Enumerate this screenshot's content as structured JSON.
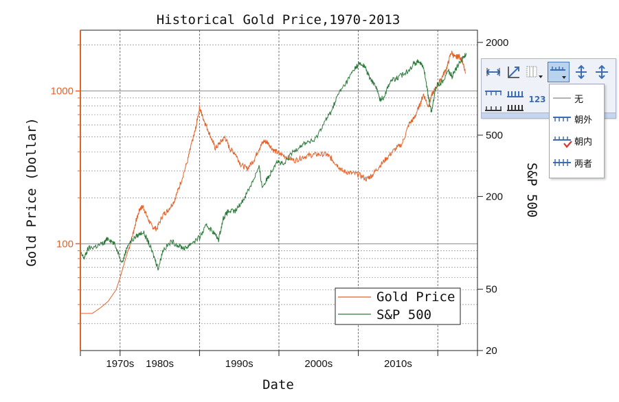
{
  "chart_data": {
    "type": "line",
    "title": "Historical Gold Price,1970-2013",
    "xlabel": "Date",
    "ylabel_left": "Gold Price (Dollar)",
    "ylabel_right": "S&P 500",
    "x_range": [
      1965.0,
      2015.0
    ],
    "x_tick_labels": [
      "1970s",
      "1980s",
      "1990s",
      "2000s",
      "2010s"
    ],
    "y_left": {
      "scale": "log",
      "range": [
        20,
        2500
      ],
      "tick_labels": [
        "100",
        "1000"
      ],
      "tick_values": [
        100,
        1000
      ]
    },
    "y_right": {
      "scale": "log",
      "range": [
        20,
        2400
      ],
      "tick_labels": [
        "20",
        "50",
        "200",
        "500",
        "2000"
      ],
      "tick_values": [
        20,
        50,
        200,
        500,
        2000
      ]
    },
    "grid": true,
    "legend_position": "bottom-right",
    "series": [
      {
        "name": "Gold Price",
        "color": "#e2622a",
        "axis": "left",
        "points": [
          [
            1965.0,
            35
          ],
          [
            1966.5,
            35
          ],
          [
            1967.5,
            38
          ],
          [
            1968.5,
            42
          ],
          [
            1969.5,
            50
          ],
          [
            1970.0,
            60
          ],
          [
            1970.7,
            80
          ],
          [
            1971.5,
            110
          ],
          [
            1972.0,
            140
          ],
          [
            1972.5,
            170
          ],
          [
            1972.9,
            175
          ],
          [
            1973.4,
            150
          ],
          [
            1974.0,
            130
          ],
          [
            1974.6,
            125
          ],
          [
            1975.4,
            155
          ],
          [
            1976.0,
            165
          ],
          [
            1976.8,
            190
          ],
          [
            1977.5,
            240
          ],
          [
            1978.5,
            350
          ],
          [
            1979.0,
            450
          ],
          [
            1979.5,
            560
          ],
          [
            1980.0,
            780
          ],
          [
            1980.3,
            700
          ],
          [
            1980.8,
            600
          ],
          [
            1981.5,
            490
          ],
          [
            1982.0,
            420
          ],
          [
            1982.6,
            460
          ],
          [
            1983.2,
            500
          ],
          [
            1983.8,
            420
          ],
          [
            1984.5,
            390
          ],
          [
            1985.2,
            330
          ],
          [
            1986.0,
            310
          ],
          [
            1986.8,
            350
          ],
          [
            1987.5,
            420
          ],
          [
            1988.1,
            470
          ],
          [
            1988.6,
            460
          ],
          [
            1989.3,
            410
          ],
          [
            1990.0,
            390
          ],
          [
            1991.0,
            370
          ],
          [
            1992.0,
            350
          ],
          [
            1993.0,
            370
          ],
          [
            1994.0,
            380
          ],
          [
            1995.0,
            385
          ],
          [
            1996.0,
            385
          ],
          [
            1996.6,
            360
          ],
          [
            1997.3,
            330
          ],
          [
            1998.0,
            300
          ],
          [
            1999.0,
            290
          ],
          [
            2000.0,
            285
          ],
          [
            2001.0,
            265
          ],
          [
            2001.7,
            280
          ],
          [
            2002.6,
            320
          ],
          [
            2003.5,
            360
          ],
          [
            2004.5,
            410
          ],
          [
            2005.5,
            450
          ],
          [
            2006.4,
            610
          ],
          [
            2007.0,
            660
          ],
          [
            2007.7,
            800
          ],
          [
            2008.2,
            950
          ],
          [
            2008.8,
            800
          ],
          [
            2009.3,
            950
          ],
          [
            2010.0,
            1100
          ],
          [
            2010.6,
            1250
          ],
          [
            2011.2,
            1450
          ],
          [
            2011.7,
            1800
          ],
          [
            2012.2,
            1650
          ],
          [
            2012.6,
            1700
          ],
          [
            2013.0,
            1620
          ],
          [
            2013.5,
            1300
          ]
        ]
      },
      {
        "name": "S&P 500",
        "color": "#2c7a3a",
        "axis": "right",
        "points": [
          [
            1965.0,
            85
          ],
          [
            1965.5,
            80
          ],
          [
            1966.0,
            92
          ],
          [
            1967.0,
            95
          ],
          [
            1968.0,
            100
          ],
          [
            1968.5,
            108
          ],
          [
            1969.3,
            98
          ],
          [
            1970.3,
            75
          ],
          [
            1971.0,
            98
          ],
          [
            1972.0,
            110
          ],
          [
            1972.9,
            118
          ],
          [
            1973.6,
            100
          ],
          [
            1974.4,
            78
          ],
          [
            1974.8,
            68
          ],
          [
            1975.4,
            90
          ],
          [
            1976.5,
            102
          ],
          [
            1977.5,
            95
          ],
          [
            1978.2,
            92
          ],
          [
            1979.0,
            100
          ],
          [
            1980.0,
            108
          ],
          [
            1980.9,
            130
          ],
          [
            1981.6,
            120
          ],
          [
            1982.4,
            105
          ],
          [
            1983.0,
            145
          ],
          [
            1983.6,
            160
          ],
          [
            1984.5,
            160
          ],
          [
            1985.5,
            190
          ],
          [
            1986.5,
            240
          ],
          [
            1987.5,
            310
          ],
          [
            1987.9,
            230
          ],
          [
            1988.8,
            275
          ],
          [
            1989.7,
            340
          ],
          [
            1990.6,
            320
          ],
          [
            1991.6,
            380
          ],
          [
            1992.5,
            420
          ],
          [
            1993.5,
            450
          ],
          [
            1994.5,
            460
          ],
          [
            1995.5,
            580
          ],
          [
            1996.5,
            700
          ],
          [
            1997.5,
            930
          ],
          [
            1998.5,
            1100
          ],
          [
            1999.5,
            1350
          ],
          [
            2000.1,
            1450
          ],
          [
            2000.8,
            1400
          ],
          [
            2001.5,
            1150
          ],
          [
            2002.2,
            1050
          ],
          [
            2002.7,
            850
          ],
          [
            2003.2,
            880
          ],
          [
            2004.0,
            1120
          ],
          [
            2005.0,
            1180
          ],
          [
            2006.0,
            1280
          ],
          [
            2007.0,
            1450
          ],
          [
            2007.7,
            1520
          ],
          [
            2008.3,
            1320
          ],
          [
            2008.8,
            900
          ],
          [
            2009.2,
            700
          ],
          [
            2009.8,
            1050
          ],
          [
            2010.5,
            1100
          ],
          [
            2011.3,
            1320
          ],
          [
            2011.8,
            1200
          ],
          [
            2012.4,
            1380
          ],
          [
            2013.0,
            1550
          ],
          [
            2013.6,
            1700
          ]
        ]
      }
    ]
  },
  "toolbar": {
    "icons": [
      "tick-length-icon",
      "diagonal-axis-icon",
      "grid-dropdown-icon",
      "tick-style-icon",
      "vertical-stretch-icon",
      "cross-stretch-icon",
      "ticks-top-icon",
      "ticks-bold-icon",
      "number-label-icon",
      "ticks-both-side-icon",
      "ticks-outside-icon"
    ],
    "dropdown_items": [
      {
        "label": "无",
        "icon": "tick-none-icon"
      },
      {
        "label": "朝外",
        "icon": "tick-out-icon"
      },
      {
        "label": "朝内",
        "icon": "tick-in-icon",
        "checked": true
      },
      {
        "label": "两者",
        "icon": "tick-both-icon"
      }
    ],
    "number_label": "123"
  }
}
